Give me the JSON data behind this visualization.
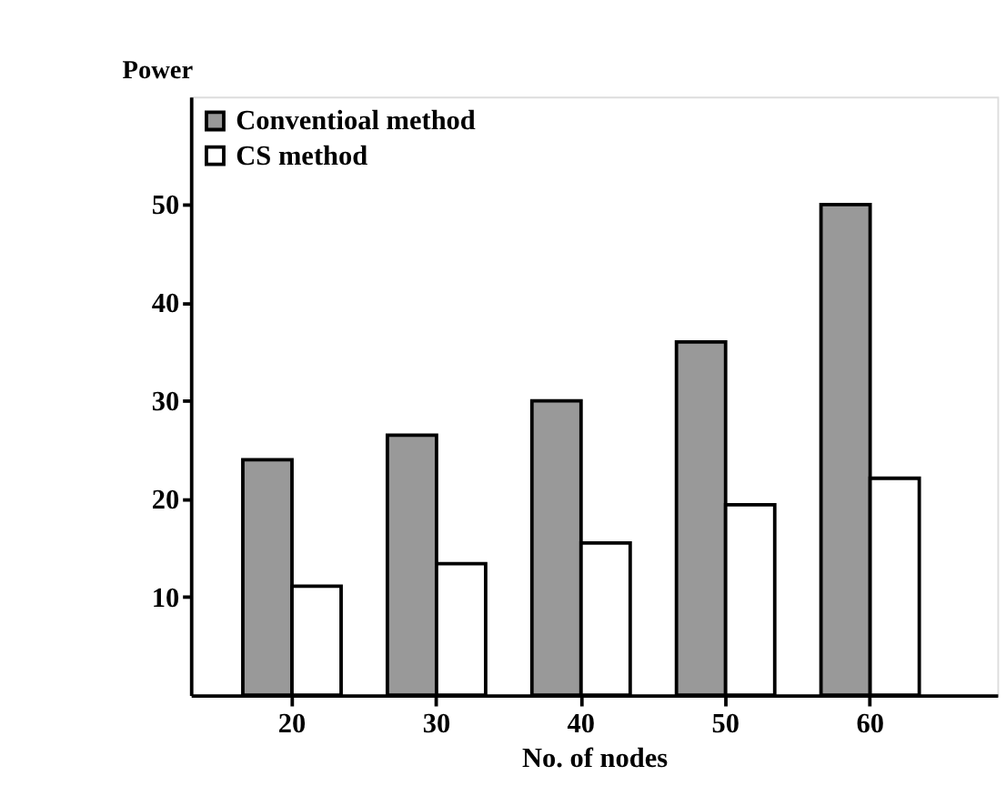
{
  "chart_data": {
    "type": "bar",
    "xlabel": "No. of nodes",
    "ylabel": "Power",
    "categories": [
      "20",
      "30",
      "40",
      "50",
      "60"
    ],
    "series": [
      {
        "name": "Conventioal method",
        "color": "#999999",
        "values": [
          24,
          26.5,
          30,
          36,
          50
        ]
      },
      {
        "name": "CS method",
        "color": "#ffffff",
        "values": [
          11.1,
          13.4,
          15.5,
          19.4,
          22.1
        ]
      }
    ],
    "ylim": [
      0,
      61
    ],
    "yticks": [
      10,
      20,
      30,
      40,
      50
    ],
    "grid": false,
    "legend": "top left"
  }
}
